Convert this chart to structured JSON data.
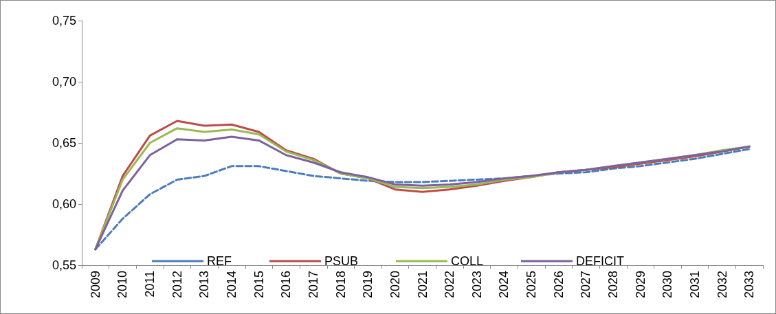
{
  "chart_data": {
    "type": "line",
    "categories": [
      "2009",
      "2010",
      "2011",
      "2012",
      "2013",
      "2014",
      "2015",
      "2016",
      "2017",
      "2018",
      "2019",
      "2020",
      "2021",
      "2022",
      "2023",
      "2024",
      "2025",
      "2026",
      "2027",
      "2028",
      "2029",
      "2030",
      "2031",
      "2032",
      "2033"
    ],
    "series": [
      {
        "name": "REF",
        "color": "#4a7ebb",
        "line_style": "dashed",
        "values": [
          0.563,
          0.588,
          0.608,
          0.62,
          0.623,
          0.631,
          0.631,
          0.627,
          0.623,
          0.621,
          0.619,
          0.618,
          0.618,
          0.619,
          0.62,
          0.621,
          0.623,
          0.625,
          0.626,
          0.629,
          0.631,
          0.634,
          0.637,
          0.641,
          0.645
        ]
      },
      {
        "name": "PSUB",
        "color": "#be4b48",
        "line_style": "solid",
        "values": [
          0.563,
          0.623,
          0.656,
          0.668,
          0.664,
          0.665,
          0.659,
          0.644,
          0.637,
          0.625,
          0.621,
          0.612,
          0.61,
          0.612,
          0.615,
          0.619,
          0.622,
          0.626,
          0.628,
          0.63,
          0.633,
          0.636,
          0.639,
          0.643,
          0.647
        ]
      },
      {
        "name": "COLL",
        "color": "#98b954",
        "line_style": "solid",
        "values": [
          0.563,
          0.62,
          0.65,
          0.662,
          0.659,
          0.661,
          0.657,
          0.643,
          0.636,
          0.625,
          0.621,
          0.614,
          0.613,
          0.614,
          0.616,
          0.62,
          0.622,
          0.626,
          0.628,
          0.631,
          0.634,
          0.637,
          0.64,
          0.644,
          0.647
        ]
      },
      {
        "name": "DEFICIT",
        "color": "#7d60a0",
        "line_style": "solid",
        "values": [
          0.563,
          0.611,
          0.64,
          0.653,
          0.652,
          0.655,
          0.652,
          0.64,
          0.634,
          0.626,
          0.622,
          0.616,
          0.615,
          0.616,
          0.618,
          0.621,
          0.623,
          0.626,
          0.628,
          0.631,
          0.634,
          0.637,
          0.64,
          0.643,
          0.647
        ]
      }
    ],
    "ylim": [
      0.55,
      0.75
    ],
    "yticks": [
      {
        "value": 0.55,
        "label": "0,55"
      },
      {
        "value": 0.6,
        "label": "0,60"
      },
      {
        "value": 0.65,
        "label": "0,65"
      },
      {
        "value": 0.7,
        "label": "0,70"
      },
      {
        "value": 0.75,
        "label": "0,75"
      }
    ],
    "grid": false,
    "legend": "bottom",
    "marker": "none"
  }
}
